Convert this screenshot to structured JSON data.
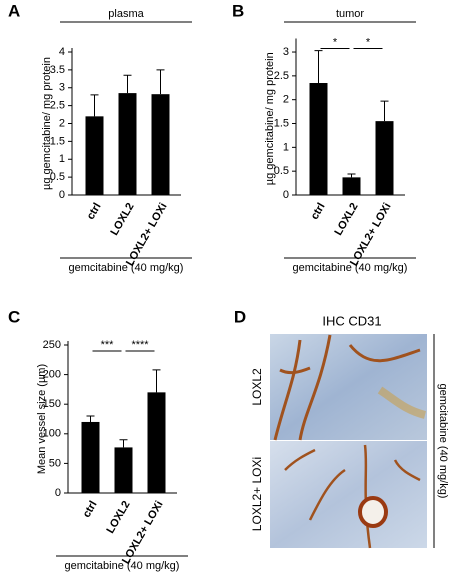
{
  "chart_data": [
    {
      "type": "bar",
      "panel_label": "A",
      "group_label": "plasma",
      "y_label": "µg gemcitabine/ mg protein",
      "x_label": "gemcitabine (40 mg/kg)",
      "categories": [
        "ctrl",
        "LOXL2",
        "LOXL2+ LOXi"
      ],
      "values": [
        2.2,
        2.85,
        2.82
      ],
      "errors": [
        0.6,
        0.5,
        0.68
      ],
      "color": "#000000",
      "ylim": [
        0,
        4
      ],
      "yticks": [
        0,
        0.5,
        1,
        1.5,
        2,
        2.5,
        3,
        3.5,
        4
      ],
      "annotations": []
    },
    {
      "type": "bar",
      "panel_label": "B",
      "group_label": "tumor",
      "y_label": "µg gemcitabine/ mg protein",
      "x_label": "gemcitabine (40 mg/kg)",
      "categories": [
        "ctrl",
        "LOXL2",
        "LOXL2+ LOXi"
      ],
      "values": [
        2.35,
        0.37,
        1.55
      ],
      "errors": [
        0.68,
        0.07,
        0.42
      ],
      "color": "#000000",
      "ylim": [
        0,
        3.2
      ],
      "yticks": [
        0,
        0.5,
        1,
        1.5,
        2,
        2.5,
        3
      ],
      "annotations": [
        {
          "label": "*",
          "between": [
            0,
            1
          ]
        },
        {
          "label": "*",
          "between": [
            1,
            2
          ]
        }
      ]
    },
    {
      "type": "bar",
      "panel_label": "C",
      "y_label": "Mean vessel size (µm)",
      "x_label": "gemcitabine (40 mg/kg)",
      "categories": [
        "ctrl",
        "LOXL2",
        "LOXL2+ LOXi"
      ],
      "values": [
        120,
        77,
        170
      ],
      "errors": [
        10,
        13,
        38
      ],
      "color": "#000000",
      "ylim": [
        0,
        250
      ],
      "yticks": [
        0,
        50,
        100,
        150,
        200,
        250
      ],
      "annotations": [
        {
          "label": "***",
          "between": [
            0,
            1
          ]
        },
        {
          "label": "****",
          "between": [
            1,
            2
          ]
        }
      ]
    }
  ],
  "image_panel": {
    "panel_label": "D",
    "title": "IHC CD31",
    "row_labels": [
      "LOXL2",
      "LOXL2+ LOXi"
    ],
    "side_label": "gemcitabine (40 mg/kg)"
  }
}
